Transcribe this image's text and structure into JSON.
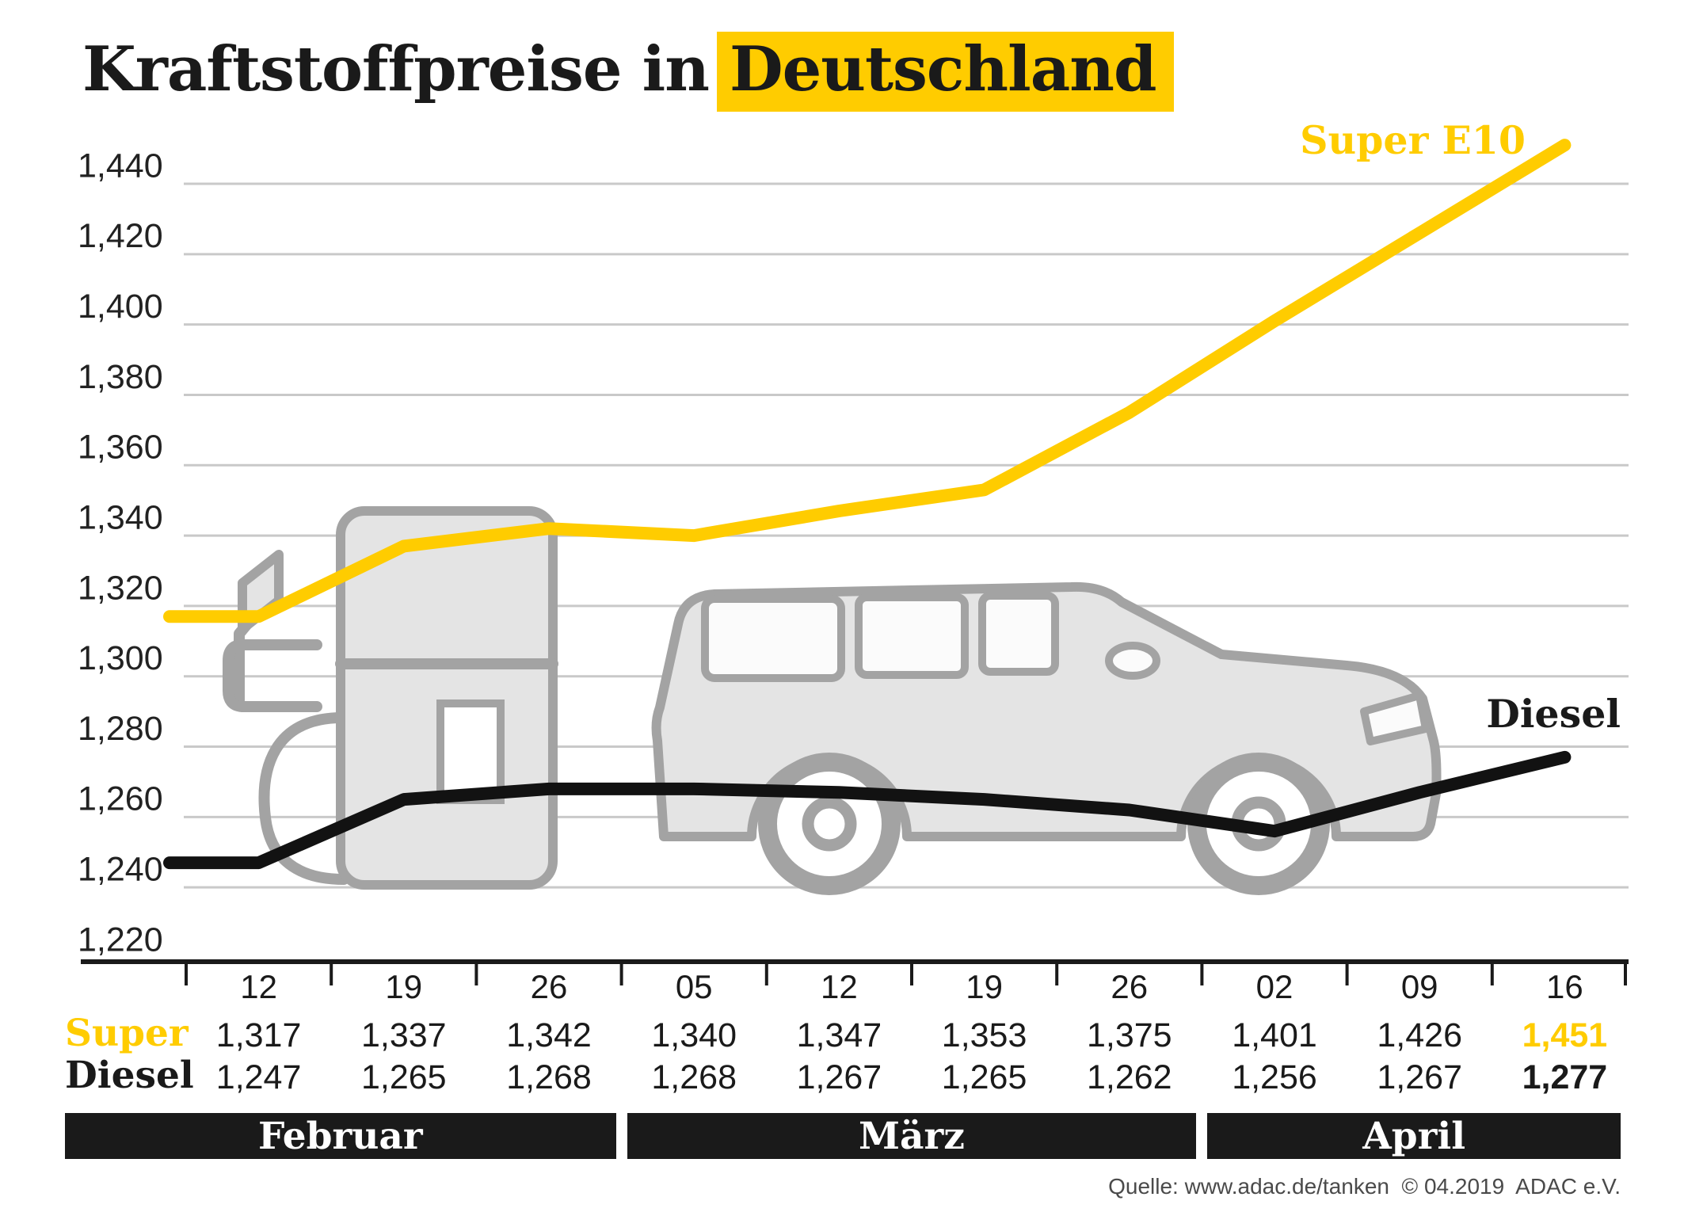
{
  "title": {
    "prefix": "Kraftstoffpreise in",
    "highlight": "Deutschland"
  },
  "series_labels": {
    "super": "Super E10",
    "diesel": "Diesel"
  },
  "table": {
    "super_label": "Super",
    "diesel_label": "Diesel"
  },
  "months": [
    {
      "label": "Februar",
      "span": 3
    },
    {
      "label": "März",
      "span": 4
    },
    {
      "label": "April",
      "span": 3
    }
  ],
  "source": "Quelle: www.adac.de/tanken  © 04.2019  ADAC e.V.",
  "colors": {
    "accent": "#FFCC00",
    "diesel_line": "#121212",
    "grid": "#c9c9c9",
    "illustration_stroke": "#a3a3a3",
    "illustration_fill": "#e4e4e4",
    "band_bg": "#1a1a1a"
  },
  "chart_data": {
    "type": "line",
    "title": "Kraftstoffpreise in Deutschland",
    "categories": [
      "12",
      "19",
      "26",
      "05",
      "12",
      "19",
      "26",
      "02",
      "09",
      "16"
    ],
    "series": [
      {
        "name": "Super E10",
        "color": "#FFCC00",
        "values": [
          1.317,
          1.337,
          1.342,
          1.34,
          1.347,
          1.353,
          1.375,
          1.401,
          1.426,
          1.451
        ]
      },
      {
        "name": "Diesel",
        "color": "#121212",
        "values": [
          1.247,
          1.265,
          1.268,
          1.268,
          1.267,
          1.265,
          1.262,
          1.256,
          1.267,
          1.277
        ]
      }
    ],
    "ylim": [
      1.22,
      1.44
    ],
    "ytick_labels": [
      "1,220",
      "1,240",
      "1,260",
      "1,280",
      "1,300",
      "1,320",
      "1,340",
      "1,360",
      "1,380",
      "1,400",
      "1,420",
      "1,440"
    ],
    "grid": true,
    "legend_position": "inline-line-labels"
  }
}
